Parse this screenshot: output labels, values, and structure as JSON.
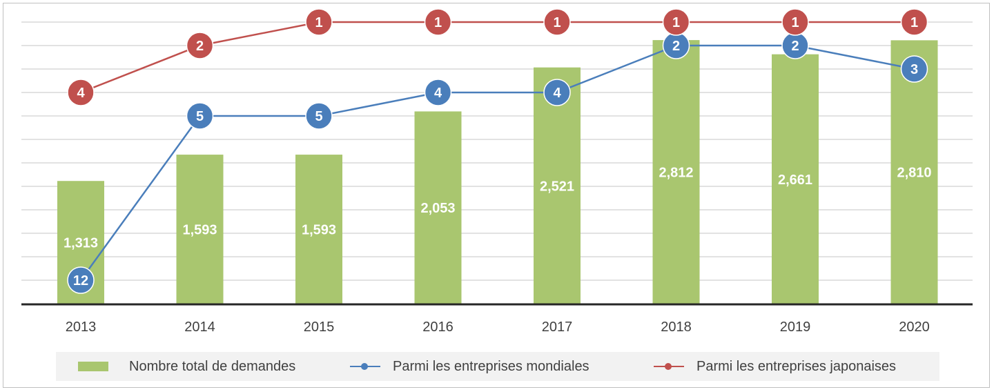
{
  "chart_data": {
    "type": "bar",
    "categories": [
      "2013",
      "2014",
      "2015",
      "2016",
      "2017",
      "2018",
      "2019",
      "2020"
    ],
    "bar_series": {
      "name": "Nombre total de demandes",
      "values": [
        1313,
        1593,
        1593,
        2053,
        2521,
        2812,
        2661,
        2810
      ],
      "labels": [
        "1,313",
        "1,593",
        "1,593",
        "2,053",
        "2,521",
        "2,812",
        "2,661",
        "2,810"
      ],
      "color": "#a9c66f"
    },
    "rank_series": [
      {
        "name": "Parmi les entreprises mondiales",
        "values": [
          12,
          5,
          5,
          4,
          4,
          2,
          2,
          3
        ],
        "color": "#4a7ebb"
      },
      {
        "name": "Parmi les entreprises japonaises",
        "values": [
          4,
          2,
          1,
          1,
          1,
          1,
          1,
          1
        ],
        "color": "#c0504d"
      }
    ],
    "rank_axis": {
      "inverted": true,
      "min": 1,
      "max": 12
    },
    "ylim": [
      0,
      3000
    ],
    "grid": true,
    "legend_position": "bottom"
  }
}
